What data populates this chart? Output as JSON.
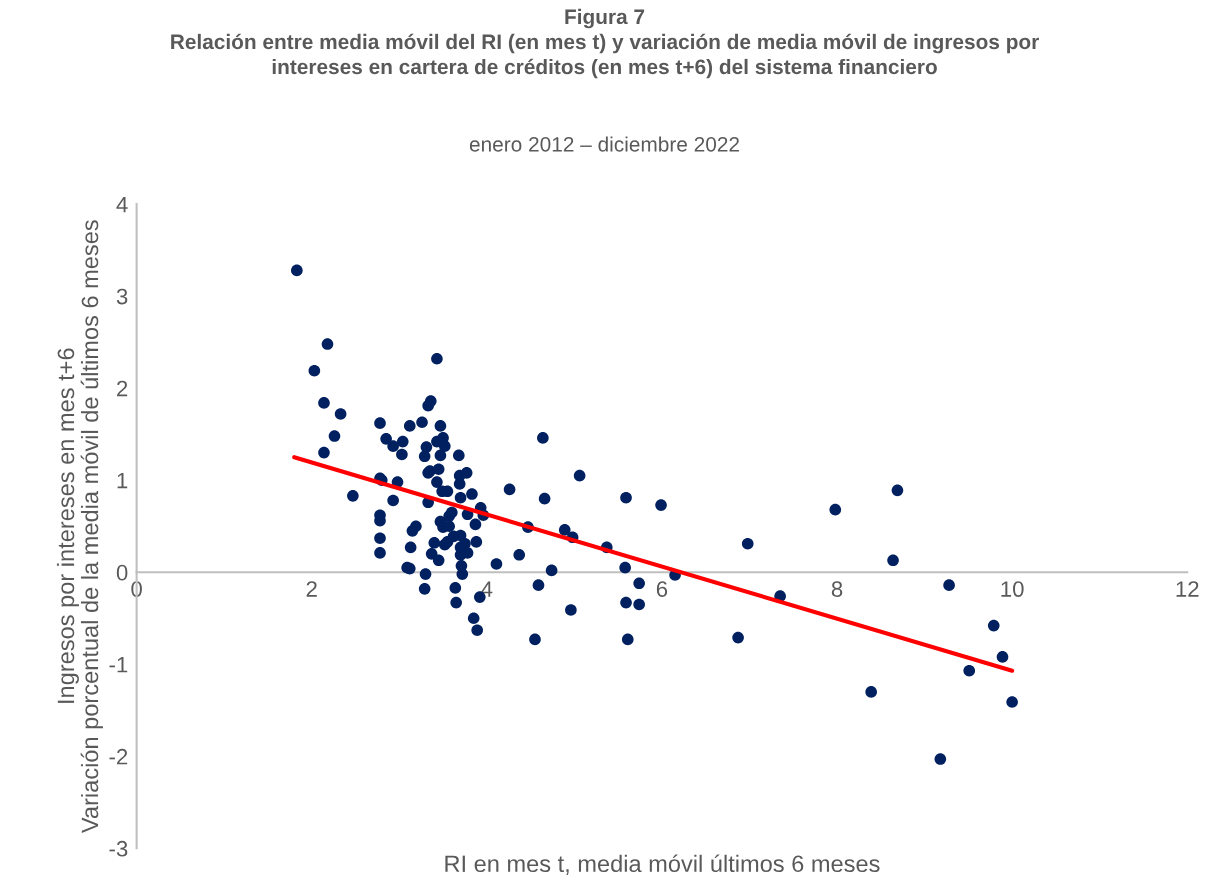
{
  "chart_data": {
    "type": "scatter",
    "title": "Figura 7\nRelación entre media móvil del RI (en mes t) y variación de media móvil de ingresos por\nintereses en cartera de créditos (en mes t+6) del sistema financiero",
    "subtitle": "enero 2012 – diciembre 2022",
    "xlabel": "RI en mes t, media móvil últimos 6 meses",
    "ylabel": "Ingresos por intereses en mes t+6\nVariación porcentual de la media móvil de últimos 6 meses",
    "xlim": [
      0,
      12
    ],
    "xticks": [
      0,
      2,
      4,
      6,
      8,
      10,
      12
    ],
    "ylim": [
      -3,
      4
    ],
    "yticks": [
      -3,
      -2,
      -1,
      0,
      1,
      2,
      3,
      4
    ],
    "grid": false,
    "legend": false,
    "series": [
      {
        "marker": "circle",
        "color": "#002060",
        "x": [
          1.83,
          2.03,
          2.18,
          2.14,
          2.33,
          2.26,
          2.14,
          2.47,
          2.78,
          2.78,
          2.8,
          2.78,
          2.78,
          2.78,
          2.78,
          2.85,
          2.93,
          2.93,
          2.98,
          3.04,
          3.03,
          3.12,
          3.09,
          3.12,
          3.13,
          3.15,
          3.19,
          3.26,
          3.29,
          3.33,
          3.36,
          3.31,
          3.33,
          3.35,
          3.33,
          3.3,
          3.29,
          3.37,
          3.4,
          3.43,
          3.43,
          3.45,
          3.43,
          3.47,
          3.47,
          3.5,
          3.52,
          3.49,
          3.47,
          3.5,
          3.45,
          3.52,
          3.55,
          3.57,
          3.57,
          3.55,
          3.6,
          3.62,
          3.64,
          3.65,
          3.68,
          3.69,
          3.69,
          3.7,
          3.7,
          3.7,
          3.7,
          3.71,
          3.72,
          3.75,
          3.77,
          3.78,
          3.78,
          3.83,
          3.85,
          3.87,
          3.88,
          3.89,
          3.92,
          3.93,
          3.96,
          4.11,
          4.26,
          4.37,
          4.47,
          4.55,
          4.59,
          4.64,
          4.66,
          4.74,
          4.89,
          4.98,
          4.96,
          5.06,
          5.37,
          5.58,
          5.59,
          5.59,
          5.61,
          5.74,
          5.74,
          5.99,
          6.15,
          6.87,
          6.98,
          7.35,
          7.98,
          8.39,
          8.64,
          8.69,
          9.18,
          9.28,
          9.51,
          9.79,
          9.89,
          10.0
        ],
        "values": [
          3.28,
          2.19,
          2.48,
          1.84,
          1.72,
          1.48,
          1.3,
          0.83,
          1.62,
          1.02,
          1.0,
          0.62,
          0.56,
          0.37,
          0.21,
          1.45,
          1.37,
          0.78,
          0.98,
          1.42,
          1.28,
          1.59,
          0.05,
          0.04,
          0.27,
          0.45,
          0.5,
          1.63,
          1.26,
          1.81,
          1.86,
          1.36,
          1.08,
          1.1,
          0.76,
          -0.02,
          -0.18,
          0.2,
          0.32,
          2.32,
          1.42,
          1.12,
          0.98,
          1.59,
          1.27,
          1.46,
          1.37,
          0.88,
          0.55,
          0.49,
          0.13,
          0.3,
          0.88,
          0.61,
          0.5,
          0.33,
          0.65,
          0.39,
          -0.17,
          -0.33,
          1.27,
          1.05,
          0.96,
          0.81,
          0.4,
          0.27,
          0.19,
          0.07,
          -0.02,
          0.31,
          1.08,
          0.63,
          0.21,
          0.85,
          -0.5,
          0.52,
          0.33,
          -0.63,
          -0.27,
          0.7,
          0.62,
          0.09,
          0.9,
          0.19,
          0.49,
          -0.73,
          -0.14,
          1.46,
          0.8,
          0.02,
          0.46,
          0.38,
          -0.41,
          1.05,
          0.27,
          0.05,
          0.81,
          -0.33,
          -0.73,
          -0.12,
          -0.35,
          0.73,
          -0.03,
          -0.71,
          0.31,
          -0.26,
          0.68,
          -1.3,
          0.13,
          0.89,
          -2.03,
          -0.14,
          -1.07,
          -0.58,
          -0.92,
          -1.41
        ]
      },
      {
        "type": "line",
        "color": "#ff0000",
        "x": [
          1.8,
          10.0
        ],
        "values": [
          1.25,
          -1.07
        ]
      }
    ]
  }
}
